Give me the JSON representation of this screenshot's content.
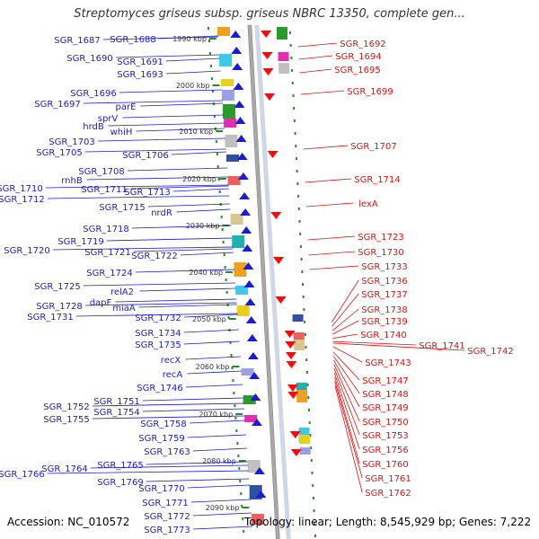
{
  "title": "Streptomyces griseus subsp. griseus NBRC 13350, complete gen...",
  "footer": {
    "accession": "Accession: NC_010572",
    "summary": "Topology: linear; Length: 8,545,929 bp; Genes: 7,222"
  },
  "colors": {
    "left_label": "#1a1acc",
    "right_label": "#dd1111",
    "tick": "#2a8a2a",
    "backbone": "#a8a8a8",
    "forward_gene": "#1a1add",
    "reverse_gene": "#e81010"
  },
  "kbp_ticks": [
    "1990 kbp",
    "2000 kbp",
    "2010 kbp",
    "2020 kbp",
    "2030 kbp",
    "2040 kbp",
    "2050 kbp",
    "2060 kbp",
    "2070 kbp",
    "2080 kbp",
    "2090 kbp"
  ],
  "left_genes": [
    "SGR_1687",
    "SGR_1688",
    "SGR_1690",
    "SGR_1691",
    "SGR_1693",
    "SGR_1696",
    "SGR_1697",
    "parE",
    "sprV",
    "hrdB",
    "whiH",
    "SGR_1703",
    "SGR_1705",
    "SGR_1706",
    "SGR_1708",
    "rnhB",
    "SGR_1710",
    "SGR_1711",
    "SGR_1712",
    "SGR_1713",
    "SGR_1715",
    "nrdR",
    "SGR_1718",
    "SGR_1719",
    "SGR_1720",
    "SGR_1721",
    "SGR_1722",
    "SGR_1724",
    "SGR_1725",
    "relA2",
    "dapF",
    "SGR_1728",
    "miaA",
    "SGR_1731",
    "SGR_1732",
    "SGR_1734",
    "SGR_1735",
    "recX",
    "recA",
    "SGR_1746",
    "SGR_1751",
    "SGR_1752",
    "SGR_1754",
    "SGR_1755",
    "SGR_1758",
    "SGR_1759",
    "SGR_1763",
    "SGR_1764",
    "SGR_1765",
    "SGR_1766",
    "SGR_1769",
    "SGR_1770",
    "SGR_1771",
    "SGR_1772",
    "SGR_1773"
  ],
  "right_genes": [
    "SGR_1692",
    "SGR_1694",
    "SGR_1695",
    "SGR_1699",
    "SGR_1707",
    "SGR_1714",
    "lexA",
    "SGR_1723",
    "SGR_1730",
    "SGR_1733",
    "SGR_1736",
    "SGR_1737",
    "SGR_1738",
    "SGR_1739",
    "SGR_1740",
    "SGR_1741",
    "SGR_1742",
    "SGR_1743",
    "SGR_1747",
    "SGR_1748",
    "SGR_1749",
    "SGR_1750",
    "SGR_1753",
    "SGR_1756",
    "SGR_1760",
    "SGR_1761",
    "SGR_1762"
  ]
}
